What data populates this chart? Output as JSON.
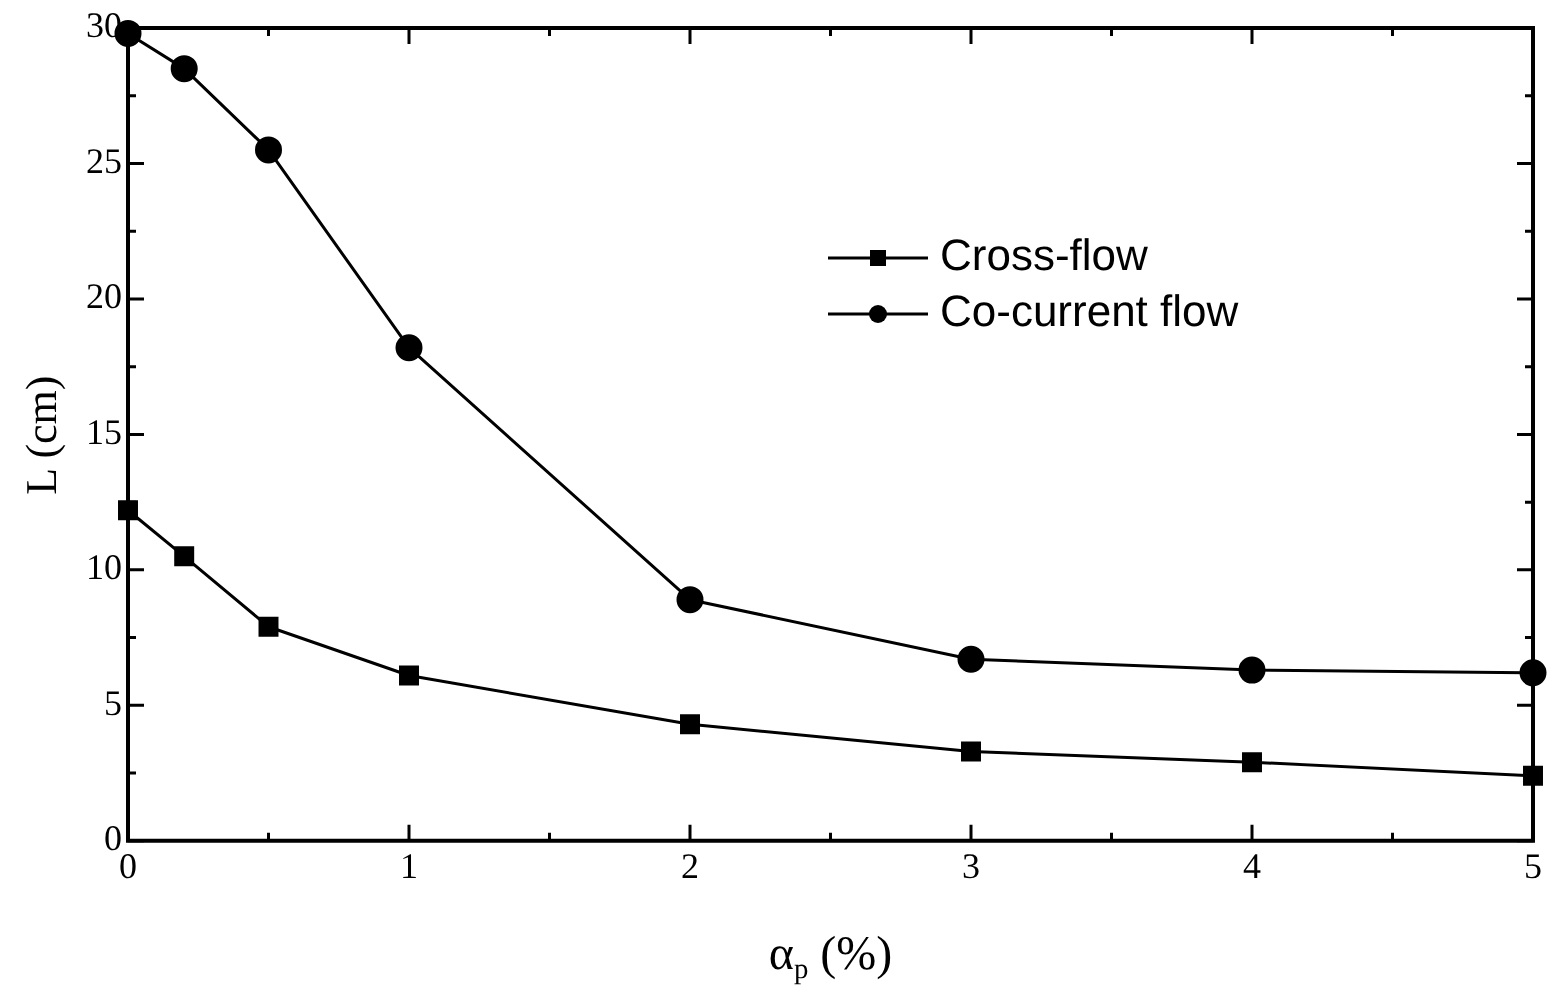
{
  "chart_data": {
    "type": "line",
    "xlabel": "α$_{p}$ (%)",
    "ylabel": "L (cm)",
    "xlim": [
      0,
      5
    ],
    "ylim": [
      0,
      30
    ],
    "xticks": [
      0,
      {
        "value": 0.5,
        "label": null
      },
      1,
      {
        "value": 1.5,
        "label": null
      },
      2,
      {
        "value": 2.5,
        "label": null
      },
      3,
      {
        "value": 3.5,
        "label": null
      },
      4,
      {
        "value": 4.5,
        "label": null
      },
      5
    ],
    "yticks": [
      0,
      {
        "value": 2.5,
        "label": null
      },
      5,
      {
        "value": 7.5,
        "label": null
      },
      10,
      {
        "value": 12.5,
        "label": null
      },
      15,
      {
        "value": 17.5,
        "label": null
      },
      20,
      {
        "value": 22.5,
        "label": null
      },
      25,
      {
        "value": 27.5,
        "label": null
      },
      30
    ],
    "grid": false,
    "legend": "top right",
    "line_style": "solid",
    "series": [
      {
        "name": "Cross-flow",
        "color": "#000000",
        "marker": "square",
        "x": [
          0,
          0.2,
          0.5,
          1,
          2,
          3,
          4,
          5
        ],
        "values": [
          12.2,
          10.5,
          7.9,
          6.1,
          4.3,
          3.3,
          2.9,
          2.4
        ]
      },
      {
        "name": "Co-current flow",
        "color": "#000000",
        "marker": "circle",
        "x": [
          0,
          0.2,
          0.5,
          1,
          2,
          3,
          4,
          5
        ],
        "values": [
          29.8,
          28.5,
          25.5,
          18.2,
          8.9,
          6.7,
          6.3,
          6.2
        ]
      }
    ]
  }
}
